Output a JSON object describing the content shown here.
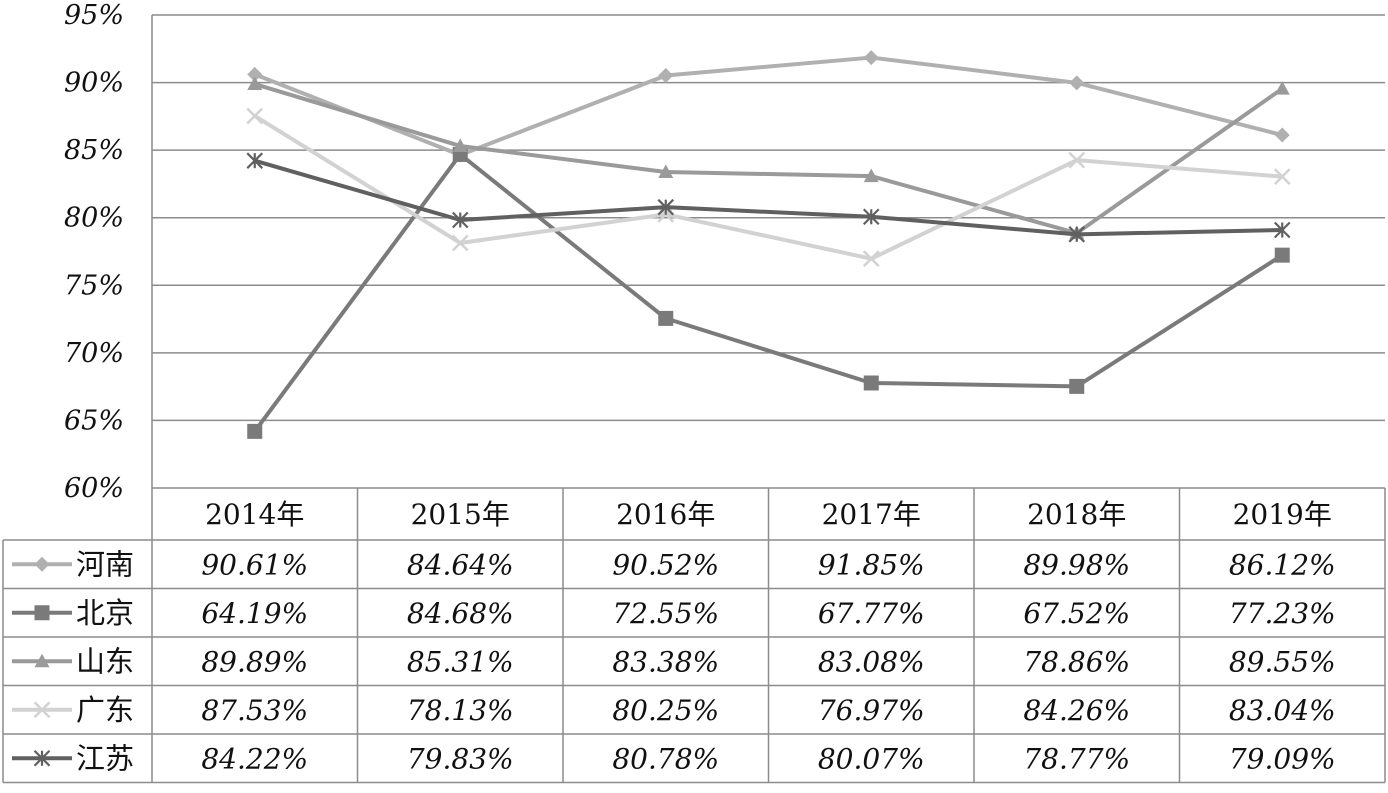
{
  "chart_data": {
    "type": "line",
    "categories": [
      "2014年",
      "2015年",
      "2016年",
      "2017年",
      "2018年",
      "2019年"
    ],
    "ylim": [
      60,
      95
    ],
    "y_ticks": [
      95,
      90,
      85,
      80,
      75,
      70,
      65,
      60
    ],
    "y_tick_labels": [
      "95%",
      "90%",
      "85%",
      "80%",
      "75%",
      "70%",
      "65%",
      "60%"
    ],
    "grid": true,
    "legend_placement": "data-table-left",
    "series": [
      {
        "name": "河南",
        "marker": "diamond",
        "color": "#b0b0b0",
        "values": [
          90.61,
          84.64,
          90.52,
          91.85,
          89.98,
          86.12
        ],
        "labels": [
          "90.61%",
          "84.64%",
          "90.52%",
          "91.85%",
          "89.98%",
          "86.12%"
        ]
      },
      {
        "name": "北京",
        "marker": "square",
        "color": "#7a7a7a",
        "values": [
          64.19,
          84.68,
          72.55,
          67.77,
          67.52,
          77.23
        ],
        "labels": [
          "64.19%",
          "84.68%",
          "72.55%",
          "67.77%",
          "67.52%",
          "77.23%"
        ]
      },
      {
        "name": "山东",
        "marker": "triangle",
        "color": "#9a9a9a",
        "values": [
          89.89,
          85.31,
          83.38,
          83.08,
          78.86,
          89.55
        ],
        "labels": [
          "89.89%",
          "85.31%",
          "83.38%",
          "83.08%",
          "78.86%",
          "89.55%"
        ]
      },
      {
        "name": "广东",
        "marker": "x",
        "color": "#d2d2d2",
        "values": [
          87.53,
          78.13,
          80.25,
          76.97,
          84.26,
          83.04
        ],
        "labels": [
          "87.53%",
          "78.13%",
          "80.25%",
          "76.97%",
          "84.26%",
          "83.04%"
        ]
      },
      {
        "name": "江苏",
        "marker": "asterisk",
        "color": "#606060",
        "values": [
          84.22,
          79.83,
          80.78,
          80.07,
          78.77,
          79.09
        ],
        "labels": [
          "84.22%",
          "79.83%",
          "80.78%",
          "80.07%",
          "78.77%",
          "79.09%"
        ]
      }
    ]
  }
}
